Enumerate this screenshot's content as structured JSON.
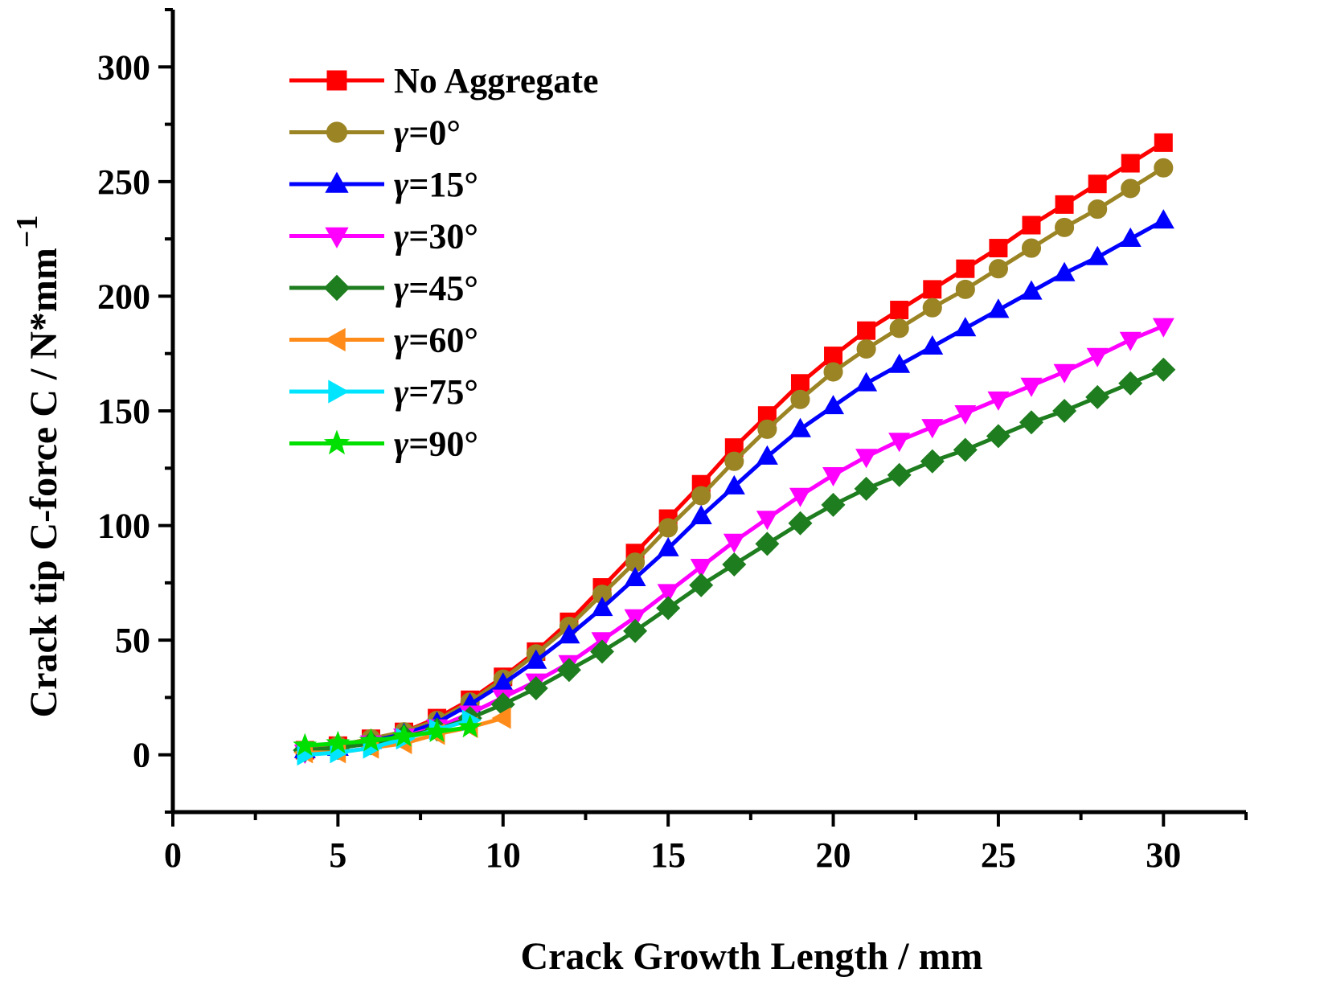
{
  "chart_data": {
    "type": "line",
    "title": "",
    "xlabel": "Crack Growth Length / mm",
    "ylabel": "Crack tip C-force C / N*mm",
    "ylabel_superscript": "−1",
    "xlim": [
      0,
      32.5
    ],
    "ylim": [
      -25,
      325
    ],
    "xticks": [
      0,
      5,
      10,
      15,
      20,
      25,
      30
    ],
    "yticks": [
      0,
      50,
      100,
      150,
      200,
      250,
      300
    ],
    "xtick_labels": [
      "0",
      "5",
      "10",
      "15",
      "20",
      "25",
      "30"
    ],
    "ytick_labels": [
      "0",
      "50",
      "100",
      "150",
      "200",
      "250",
      "300"
    ],
    "grid": false,
    "legend_position": "top-left",
    "series": [
      {
        "name": "No Aggregate",
        "legend_prefix": "",
        "legend_suffix": "No Aggregate",
        "color": "#ff0000",
        "marker": "square",
        "x": [
          4,
          5,
          6,
          7,
          8,
          9,
          10,
          11,
          12,
          13,
          14,
          15,
          16,
          17,
          18,
          19,
          20,
          21,
          22,
          23,
          24,
          25,
          26,
          27,
          28,
          29,
          30
        ],
        "values": [
          2,
          4,
          7,
          10,
          16,
          24,
          34,
          45,
          58,
          73,
          88,
          103,
          118,
          134,
          148,
          162,
          174,
          185,
          194,
          203,
          212,
          221,
          231,
          240,
          249,
          258,
          267
        ]
      },
      {
        "name": "γ=0°",
        "legend_prefix": "γ",
        "legend_suffix": "=0°",
        "color": "#9b8424",
        "marker": "circle",
        "x": [
          4,
          5,
          6,
          7,
          8,
          9,
          10,
          11,
          12,
          13,
          14,
          15,
          16,
          17,
          18,
          19,
          20,
          21,
          22,
          23,
          24,
          25,
          26,
          27,
          28,
          29,
          30
        ],
        "values": [
          2,
          4,
          7,
          10,
          15,
          23,
          33,
          44,
          56,
          70,
          84,
          99,
          113,
          128,
          142,
          155,
          167,
          177,
          186,
          195,
          203,
          212,
          221,
          230,
          238,
          247,
          256
        ]
      },
      {
        "name": "γ=15°",
        "legend_prefix": "γ",
        "legend_suffix": "=15°",
        "color": "#0000ff",
        "marker": "triangle-up",
        "x": [
          4,
          5,
          6,
          7,
          8,
          9,
          10,
          11,
          12,
          13,
          14,
          15,
          16,
          17,
          18,
          19,
          20,
          21,
          22,
          23,
          24,
          25,
          26,
          27,
          28,
          29,
          30
        ],
        "values": [
          2,
          3,
          6,
          9,
          14,
          22,
          31,
          41,
          52,
          64,
          77,
          90,
          104,
          117,
          130,
          142,
          152,
          162,
          170,
          178,
          186,
          194,
          202,
          210,
          217,
          225,
          233
        ]
      },
      {
        "name": "γ=30°",
        "legend_prefix": "γ",
        "legend_suffix": "=30°",
        "color": "#ff00ff",
        "marker": "triangle-down",
        "x": [
          4,
          5,
          6,
          7,
          8,
          9,
          10,
          11,
          12,
          13,
          14,
          15,
          16,
          17,
          18,
          19,
          20,
          21,
          22,
          23,
          24,
          25,
          26,
          27,
          28,
          29,
          30
        ],
        "values": [
          1,
          3,
          5,
          8,
          12,
          18,
          25,
          32,
          40,
          50,
          60,
          71,
          82,
          93,
          103,
          113,
          122,
          130,
          137,
          143,
          149,
          155,
          161,
          167,
          174,
          181,
          187
        ]
      },
      {
        "name": "γ=45°",
        "legend_prefix": "γ",
        "legend_suffix": "=45°",
        "color": "#1e7d1e",
        "marker": "diamond",
        "x": [
          4,
          5,
          6,
          7,
          8,
          9,
          10,
          11,
          12,
          13,
          14,
          15,
          16,
          17,
          18,
          19,
          20,
          21,
          22,
          23,
          24,
          25,
          26,
          27,
          28,
          29,
          30
        ],
        "values": [
          2,
          3,
          5,
          8,
          11,
          16,
          22,
          29,
          37,
          45,
          54,
          64,
          74,
          83,
          92,
          101,
          109,
          116,
          122,
          128,
          133,
          139,
          145,
          150,
          156,
          162,
          168
        ]
      },
      {
        "name": "γ=60°",
        "legend_prefix": "γ",
        "legend_suffix": "=60°",
        "color": "#ff8c1a",
        "marker": "triangle-left",
        "x": [
          4,
          5,
          6,
          7,
          8,
          9,
          10
        ],
        "values": [
          1,
          1,
          3,
          5,
          9,
          12,
          16
        ]
      },
      {
        "name": "γ=75°",
        "legend_prefix": "γ",
        "legend_suffix": "=75°",
        "color": "#00e5ff",
        "marker": "triangle-right",
        "x": [
          4,
          5,
          6,
          7,
          8,
          9
        ],
        "values": [
          0,
          1,
          3,
          7,
          11,
          15
        ]
      },
      {
        "name": "γ=90°",
        "legend_prefix": "γ",
        "legend_suffix": "=90°",
        "color": "#00e000",
        "marker": "star",
        "x": [
          4,
          5,
          6,
          7,
          8,
          9
        ],
        "values": [
          4,
          5,
          6,
          8,
          10,
          12
        ]
      }
    ]
  }
}
